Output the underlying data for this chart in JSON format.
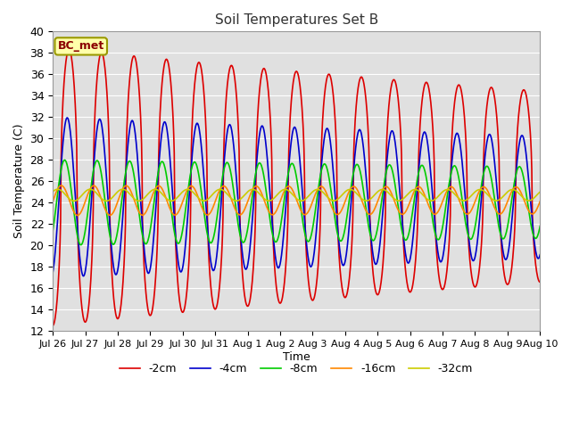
{
  "title": "Soil Temperatures Set B",
  "xlabel": "Time",
  "ylabel": "Soil Temperature (C)",
  "ylim": [
    12,
    40
  ],
  "yticks": [
    12,
    14,
    16,
    18,
    20,
    22,
    24,
    26,
    28,
    30,
    32,
    34,
    36,
    38,
    40
  ],
  "annotation": "BC_met",
  "series": [
    {
      "label": "-2cm",
      "color": "#dd0000",
      "amplitude": 13.0,
      "mean": 25.5,
      "phase": 0.0,
      "decay": 0.025,
      "power": 0.5
    },
    {
      "label": "-4cm",
      "color": "#0000cc",
      "amplitude": 7.5,
      "mean": 24.5,
      "phase": 0.35,
      "decay": 0.018,
      "power": 1.0
    },
    {
      "label": "-8cm",
      "color": "#00cc00",
      "amplitude": 4.0,
      "mean": 24.0,
      "phase": 0.85,
      "decay": 0.012,
      "power": 1.0
    },
    {
      "label": "-16cm",
      "color": "#ff8800",
      "amplitude": 1.4,
      "mean": 24.2,
      "phase": 1.5,
      "decay": 0.007,
      "power": 1.0
    },
    {
      "label": "-32cm",
      "color": "#cccc00",
      "amplitude": 0.55,
      "mean": 24.7,
      "phase": 2.2,
      "decay": 0.004,
      "power": 1.0
    }
  ],
  "xtick_labels": [
    "Jul 26",
    "Jul 27",
    "Jul 28",
    "Jul 29",
    "Jul 30",
    "Jul 31",
    "Aug 1",
    "Aug 2",
    "Aug 3",
    "Aug 4",
    "Aug 5",
    "Aug 6",
    "Aug 7",
    "Aug 8",
    "Aug 9",
    "Aug 10"
  ],
  "n_points": 1000,
  "period": 24.0,
  "plot_bg_color": "#e0e0e0",
  "grid_color": "#ffffff",
  "linewidth": 1.2,
  "legend_ncol": 5
}
